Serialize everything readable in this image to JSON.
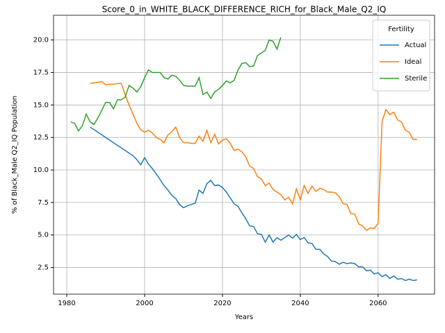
{
  "chart_data": {
    "type": "line",
    "title": "Score_0_in_WHITE_BLACK_DIFFERENCE_RICH_for_Black_Male_Q2_IQ",
    "xlabel": "Years",
    "ylabel": "% of Black_Male Q2_IQ Population",
    "legend_title": "Fertility",
    "legend": "upper right",
    "grid": true,
    "x": [
      1981,
      1982,
      1983,
      1984,
      1985,
      1986,
      1987,
      1988,
      1989,
      1990,
      1991,
      1992,
      1993,
      1994,
      1995,
      1996,
      1997,
      1998,
      1999,
      2000,
      2001,
      2002,
      2003,
      2004,
      2005,
      2006,
      2007,
      2008,
      2009,
      2010,
      2011,
      2012,
      2013,
      2014,
      2015,
      2016,
      2017,
      2018,
      2019,
      2020,
      2021,
      2022,
      2023,
      2024,
      2025,
      2026,
      2027,
      2028,
      2029,
      2030,
      2031,
      2032,
      2033,
      2034,
      2035,
      2036,
      2037,
      2038,
      2039,
      2040,
      2041,
      2042,
      2043,
      2044,
      2045,
      2046,
      2047,
      2048,
      2049,
      2050,
      2051,
      2052,
      2053,
      2054,
      2055,
      2056,
      2057,
      2058,
      2059,
      2060,
      2061,
      2062,
      2063,
      2064,
      2065,
      2066,
      2067,
      2068,
      2069,
      2070
    ],
    "series": [
      {
        "name": "Actual",
        "color": "#1f77b4",
        "values": [
          null,
          null,
          null,
          null,
          null,
          13.3,
          13.1,
          12.9,
          12.7,
          12.5,
          12.3,
          12.1,
          11.9,
          11.7,
          11.5,
          11.3,
          11.1,
          10.8,
          10.4,
          10.95,
          10.45,
          10.1,
          9.7,
          9.25,
          8.8,
          8.45,
          8.05,
          7.8,
          7.35,
          7.1,
          7.25,
          7.35,
          7.45,
          8.45,
          8.2,
          8.95,
          9.2,
          8.8,
          8.85,
          8.65,
          8.3,
          7.85,
          7.4,
          7.2,
          6.7,
          6.25,
          5.7,
          5.65,
          5.1,
          5.05,
          4.45,
          5.0,
          4.45,
          4.8,
          4.6,
          4.8,
          5.0,
          4.75,
          5.05,
          4.65,
          4.8,
          4.4,
          4.35,
          3.9,
          3.9,
          3.55,
          3.35,
          3.0,
          2.95,
          2.75,
          2.9,
          2.8,
          2.85,
          2.8,
          2.55,
          2.55,
          2.25,
          2.3,
          2.0,
          2.1,
          1.8,
          1.95,
          1.65,
          1.85,
          1.6,
          1.65,
          1.5,
          1.6,
          1.5,
          1.55
        ]
      },
      {
        "name": "Ideal",
        "color": "#ff7f0e",
        "values": [
          null,
          null,
          null,
          null,
          null,
          16.65,
          16.7,
          16.75,
          16.8,
          16.55,
          16.6,
          16.6,
          16.65,
          16.65,
          15.8,
          15.0,
          14.3,
          13.6,
          13.1,
          12.9,
          13.05,
          12.85,
          12.5,
          12.35,
          12.1,
          12.7,
          12.95,
          13.3,
          12.5,
          12.1,
          12.1,
          12.05,
          12.05,
          12.6,
          12.2,
          13.05,
          12.1,
          12.75,
          12.0,
          12.3,
          12.4,
          12.05,
          11.5,
          11.6,
          11.4,
          11.0,
          10.3,
          10.1,
          9.5,
          9.3,
          8.8,
          9.0,
          8.5,
          8.3,
          8.1,
          7.7,
          7.9,
          7.4,
          8.55,
          7.7,
          8.8,
          8.2,
          8.75,
          8.35,
          8.6,
          8.5,
          8.3,
          8.3,
          8.25,
          7.95,
          7.4,
          7.35,
          6.65,
          6.6,
          5.85,
          5.7,
          5.35,
          5.55,
          5.5,
          5.9,
          13.7,
          14.65,
          14.25,
          14.45,
          13.85,
          13.7,
          13.05,
          12.9,
          12.35,
          12.35
        ]
      },
      {
        "name": "Sterile",
        "color": "#2ca02c",
        "values": [
          13.7,
          13.6,
          13.0,
          13.4,
          14.3,
          13.7,
          13.5,
          14.0,
          14.6,
          15.2,
          15.2,
          14.7,
          15.4,
          15.4,
          15.6,
          16.5,
          16.3,
          16.0,
          16.4,
          17.1,
          17.7,
          17.5,
          17.5,
          17.5,
          17.1,
          17.0,
          17.3,
          17.2,
          16.9,
          16.5,
          16.45,
          16.45,
          16.45,
          17.1,
          15.8,
          16.0,
          15.5,
          16.0,
          16.2,
          16.5,
          16.85,
          16.7,
          16.9,
          17.7,
          18.2,
          18.25,
          17.95,
          18.0,
          18.8,
          19.0,
          19.2,
          20.0,
          19.9,
          19.3,
          20.2,
          null,
          null,
          null,
          null,
          null,
          null,
          null,
          null,
          null,
          null,
          null,
          null,
          null,
          null,
          null,
          null,
          null,
          null,
          null,
          null,
          null,
          null,
          null,
          null,
          null,
          null,
          null,
          null,
          null,
          null,
          null,
          null,
          null,
          null,
          null
        ]
      }
    ],
    "xlim": [
      1976.6,
      2074.5
    ],
    "xticks": [
      1980,
      2000,
      2020,
      2040,
      2060
    ],
    "ylim": [
      0.45,
      21.9
    ],
    "yticks": [
      {
        "value": 2.5,
        "label": "2.5"
      },
      {
        "value": 5,
        "label": "5.0"
      },
      {
        "value": 7.5,
        "label": "7.5"
      },
      {
        "value": 10,
        "label": "10.0"
      },
      {
        "value": 12.5,
        "label": "12.5"
      },
      {
        "value": 15,
        "label": "15.0"
      },
      {
        "value": 17.5,
        "label": "17.5"
      },
      {
        "value": 20,
        "label": "20.0"
      }
    ]
  }
}
